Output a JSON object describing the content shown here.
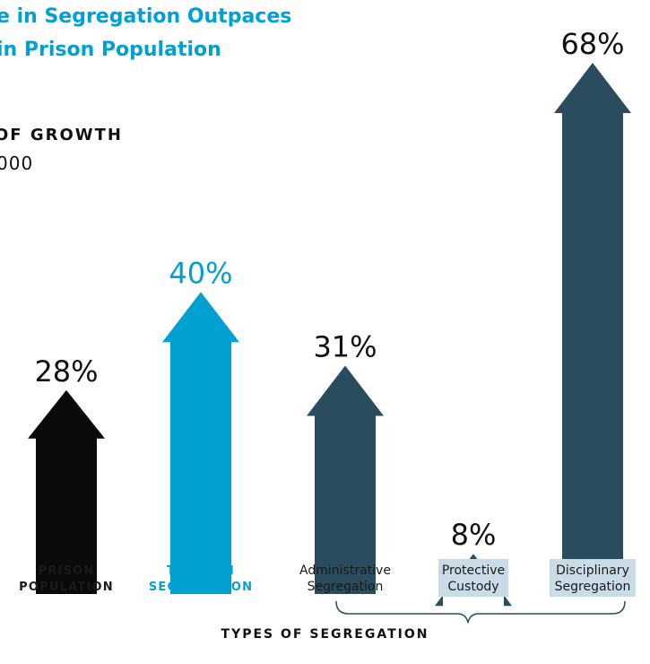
{
  "header": {
    "title_line1": "e in Segregation Outpaces",
    "title_line2": "in Prison Population",
    "subtitle_line1": "OF GROWTH",
    "subtitle_line2": "000"
  },
  "colors": {
    "title": "#00a0d2",
    "black": "#0a0a0a",
    "blue": "#00a0d2",
    "navy": "#2a4c5f",
    "label_bg": "#c9dbe6",
    "bracket": "#2a4c5f"
  },
  "chart_data": {
    "type": "bar",
    "categories": [
      "PRISON POPULATION",
      "TOTAL IN SEGREGATION",
      "Administrative Segregation",
      "Protective Custody",
      "Disciplinary Segregation"
    ],
    "values": [
      28,
      40,
      31,
      8,
      68
    ],
    "value_labels": [
      "28%",
      "40%",
      "31%",
      "8%",
      "68%"
    ],
    "label_lines": [
      [
        "PRISON",
        "POPULATION"
      ],
      [
        "TOTAL IN",
        "SEGREGATION"
      ],
      [
        "Administrative",
        "Segregation"
      ],
      [
        "Protective",
        "Custody"
      ],
      [
        "Disciplinary",
        "Segregation"
      ]
    ],
    "bar_colors": [
      "black",
      "blue",
      "navy",
      "navy",
      "navy"
    ],
    "group_label": "TYPES OF SEGREGATION"
  }
}
